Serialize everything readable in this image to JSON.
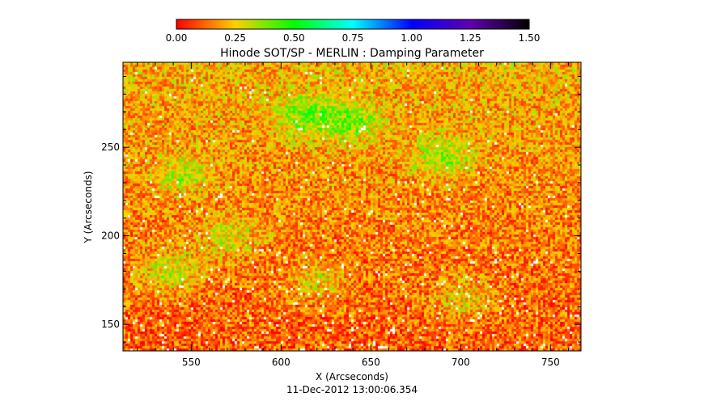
{
  "chart_data": {
    "type": "heatmap",
    "title": "Hinode SOT/SP - MERLIN : Damping Parameter",
    "xlabel": "X (Arcseconds)",
    "ylabel": "Y (Arcseconds)",
    "xlim": [
      512,
      767
    ],
    "ylim": [
      135,
      298
    ],
    "x_ticks": [
      550,
      600,
      650,
      700,
      750
    ],
    "y_ticks": [
      150,
      200,
      250
    ],
    "colorbar": {
      "range": [
        0,
        1.5
      ],
      "ticks": [
        "0.00",
        "0.25",
        "0.50",
        "0.75",
        "1.00",
        "1.25",
        "1.50"
      ],
      "colors": [
        "#ff0000",
        "#ffd000",
        "#00ff00",
        "#00ffff",
        "#0000ff",
        "#6000b0",
        "#000000"
      ]
    },
    "typical_value": 0.2,
    "bright_regions": [
      {
        "x": 612,
        "y": 268,
        "value": 0.4
      },
      {
        "x": 638,
        "y": 265,
        "value": 0.4
      },
      {
        "x": 690,
        "y": 245,
        "value": 0.38
      },
      {
        "x": 545,
        "y": 235,
        "value": 0.35
      },
      {
        "x": 538,
        "y": 180,
        "value": 0.38
      },
      {
        "x": 570,
        "y": 200,
        "value": 0.35
      },
      {
        "x": 620,
        "y": 175,
        "value": 0.33
      },
      {
        "x": 700,
        "y": 165,
        "value": 0.33
      }
    ],
    "timestamp": "11-Dec-2012 13:00:06.354"
  }
}
